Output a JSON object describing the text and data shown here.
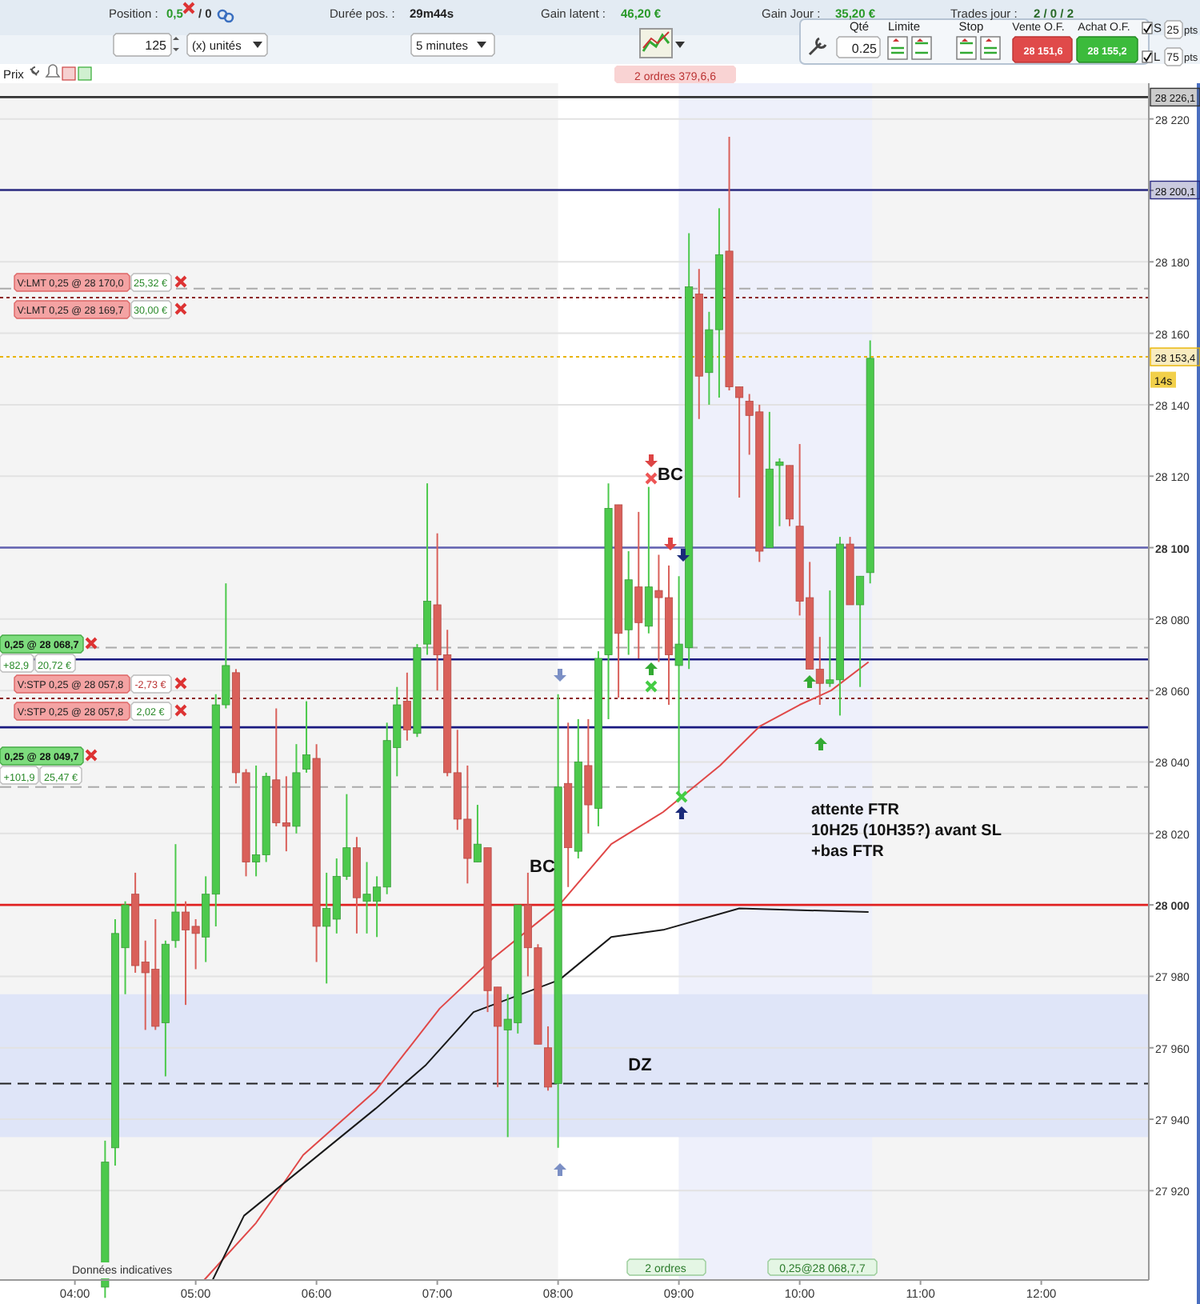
{
  "chart_data": {
    "type": "candlestick",
    "x": [
      4.25,
      4.3333,
      4.4167,
      4.5,
      4.5833,
      4.6667,
      4.75,
      4.8333,
      4.9167,
      5.0,
      5.0833,
      5.1667,
      5.25,
      5.3333,
      5.4167,
      5.5,
      5.5833,
      5.6667,
      5.75,
      5.8333,
      5.9167,
      6.0,
      6.0833,
      6.1667,
      6.25,
      6.3333,
      6.4167,
      6.5,
      6.5833,
      6.6667,
      6.75,
      6.8333,
      6.9167,
      7.0,
      7.0833,
      7.1667,
      7.25,
      7.3333,
      7.4167,
      7.5,
      7.5833,
      7.6667,
      7.75,
      7.8333,
      7.9167,
      8.0,
      8.0833,
      8.1667,
      8.25,
      8.3333,
      8.4167,
      8.5,
      8.5833,
      8.6667,
      8.75,
      8.8333,
      8.9167,
      9.0,
      9.0833,
      9.1667,
      9.25,
      9.3333,
      9.4167,
      9.5,
      9.5833,
      9.6667,
      9.75,
      9.8333,
      9.9167,
      10.0,
      10.0833,
      10.1667,
      10.25,
      10.3333,
      10.4167,
      10.5,
      10.5833
    ],
    "ohlc": [
      [
        27893,
        27934,
        27890,
        27928
      ],
      [
        27932,
        27996,
        27927,
        27992
      ],
      [
        27988,
        28001,
        27975,
        28000
      ],
      [
        28003,
        28009,
        27981,
        27983
      ],
      [
        27984,
        27990,
        27965,
        27981
      ],
      [
        27982,
        27996,
        27965,
        27966
      ],
      [
        27967,
        27990,
        27952,
        27989
      ],
      [
        27990,
        28017,
        27988,
        27998
      ],
      [
        27998,
        28001,
        27972,
        27993
      ],
      [
        27994,
        27996,
        27982,
        27992
      ],
      [
        27991,
        28008,
        27984,
        28003
      ],
      [
        28003,
        28059,
        27994,
        28056
      ],
      [
        28056,
        28090,
        28055,
        28067
      ],
      [
        28065,
        28066,
        28034,
        28037
      ],
      [
        28037,
        28038,
        28008,
        28012
      ],
      [
        28012,
        28039,
        28008,
        28014
      ],
      [
        28014,
        28037,
        28012,
        28036
      ],
      [
        28035,
        28055,
        28022,
        28023
      ],
      [
        28023,
        28036,
        28015,
        28022
      ],
      [
        28022,
        28045,
        28020,
        28037
      ],
      [
        28038,
        28057,
        28037,
        28042
      ],
      [
        28041,
        28045,
        27984,
        27994
      ],
      [
        27994,
        28009,
        27978,
        27999
      ],
      [
        27996,
        28013,
        27992,
        28008
      ],
      [
        28008,
        28031,
        28007,
        28016
      ],
      [
        28016,
        28019,
        27992,
        28002
      ],
      [
        28001,
        28012,
        27992,
        28003
      ],
      [
        28001,
        28008,
        27991,
        28005
      ],
      [
        28005,
        28051,
        28003,
        28046
      ],
      [
        28044,
        28061,
        28036,
        28056
      ],
      [
        28057,
        28065,
        28046,
        28049
      ],
      [
        28048,
        28073,
        28047,
        28072
      ],
      [
        28073,
        28118,
        28070,
        28085
      ],
      [
        28084,
        28104,
        28060,
        28070
      ],
      [
        28070,
        28077,
        28036,
        28037
      ],
      [
        28037,
        28049,
        28021,
        28024
      ],
      [
        28024,
        28039,
        28006,
        28013
      ],
      [
        28012,
        28028,
        28012,
        28017
      ],
      [
        28016,
        28016,
        27970,
        27976
      ],
      [
        27977,
        27977,
        27949,
        27966
      ],
      [
        27965,
        27975,
        27935,
        27968
      ],
      [
        27967,
        28000,
        27964,
        28000
      ],
      [
        28000,
        28009,
        27980,
        27988
      ],
      [
        27988,
        27989,
        27961,
        27961
      ],
      [
        27960,
        27966,
        27948,
        27949
      ],
      [
        27950,
        28059,
        27932,
        28033
      ],
      [
        28034,
        28051,
        28005,
        28016
      ],
      [
        28015,
        28052,
        28013,
        28040
      ],
      [
        28039,
        28052,
        28020,
        28028
      ],
      [
        28027,
        28071,
        28022,
        28069
      ],
      [
        28070,
        28118,
        28052,
        28111
      ],
      [
        28112,
        28112,
        28058,
        28076
      ],
      [
        28077,
        28099,
        28070,
        28091
      ],
      [
        28089,
        28110,
        28069,
        28079
      ],
      [
        28078,
        28117,
        28076,
        28089
      ],
      [
        28088,
        28098,
        28068,
        28086
      ],
      [
        28086,
        28095,
        28056,
        28070
      ],
      [
        28067,
        28092,
        28031,
        28073
      ],
      [
        28072,
        28188,
        28066,
        28173
      ],
      [
        28171,
        28178,
        28136,
        28148
      ],
      [
        28149,
        28166,
        28140,
        28161
      ],
      [
        28161,
        28195,
        28142,
        28182
      ],
      [
        28183,
        28215,
        28144,
        28145
      ],
      [
        28145,
        28145,
        28114,
        28142
      ],
      [
        28141,
        28143,
        28126,
        28137
      ],
      [
        28138,
        28140,
        28096,
        28099
      ],
      [
        28100,
        28138,
        28100,
        28122
      ],
      [
        28123,
        28125,
        28106,
        28124
      ],
      [
        28123,
        28123,
        28106,
        28108
      ],
      [
        28106,
        28129,
        28081,
        28085
      ],
      [
        28086,
        28096,
        28066,
        28066
      ],
      [
        28066,
        28075,
        28056,
        28062
      ],
      [
        28062,
        28088,
        28061,
        28063
      ],
      [
        28063,
        28103,
        28053,
        28101
      ],
      [
        28101,
        28103,
        28084,
        28084
      ],
      [
        28084,
        28092,
        28061,
        28092
      ],
      [
        28093,
        28158,
        28090,
        28153
      ]
    ],
    "series": [
      {
        "type": "line",
        "color": "#e04848",
        "x": [
          5.07,
          5.5,
          5.89,
          6.49,
          7.02,
          7.46,
          8.01,
          8.44,
          8.87,
          9.34,
          9.67,
          10.0,
          10.26,
          10.57
        ],
        "values": [
          27895,
          27911,
          27930,
          27948,
          27971,
          27985,
          28000,
          28017,
          28026,
          28039,
          28050,
          28056,
          28060,
          28068
        ]
      },
      {
        "type": "line",
        "color": "#1a1a1a",
        "x": [
          5.14,
          5.4,
          6.49,
          6.9,
          7.3,
          8.01,
          8.44,
          8.87,
          9.5,
          10.57
        ],
        "values": [
          27895,
          27913,
          27943,
          27955,
          27970,
          27979,
          27991,
          27993,
          27999,
          27998
        ]
      }
    ],
    "xlim": [
      3.38,
      12.89
    ],
    "ylim": [
      27895,
      28230
    ],
    "xticks": [
      {
        "value": 4,
        "label": "04:00"
      },
      {
        "value": 5,
        "label": "05:00"
      },
      {
        "value": 6,
        "label": "06:00"
      },
      {
        "value": 7,
        "label": "07:00"
      },
      {
        "value": 8,
        "label": "08:00"
      },
      {
        "value": 9,
        "label": "09:00"
      },
      {
        "value": 10,
        "label": "10:00"
      },
      {
        "value": 11,
        "label": "11:00"
      },
      {
        "value": 12,
        "label": "12:00"
      }
    ],
    "yticks": [
      {
        "value": 27920,
        "label": "27 920"
      },
      {
        "value": 27940,
        "label": "27 940"
      },
      {
        "value": 27960,
        "label": "27 960"
      },
      {
        "value": 27980,
        "label": "27 980"
      },
      {
        "value": 28000,
        "label": "28 000"
      },
      {
        "value": 28020,
        "label": "28 020"
      },
      {
        "value": 28040,
        "label": "28 040"
      },
      {
        "value": 28060,
        "label": "28 060"
      },
      {
        "value": 28080,
        "label": "28 080"
      },
      {
        "value": 28100,
        "label": "28 100"
      },
      {
        "value": 28120,
        "label": "28 120"
      },
      {
        "value": 28140,
        "label": "28 140"
      },
      {
        "value": 28160,
        "label": "28 160"
      },
      {
        "value": 28180,
        "label": "28 180"
      },
      {
        "value": 28200,
        "label": null
      },
      {
        "value": 28220,
        "label": "28 220"
      }
    ],
    "grid": "y",
    "bands": [
      {
        "axis": "x",
        "from": 8,
        "to": 9,
        "color": "#ffffff"
      },
      {
        "axis": "x",
        "from": 9,
        "to": 10.6,
        "color": "#eef0fb"
      },
      {
        "axis": "y",
        "from": 27935,
        "to": 27975,
        "color": "#dfe5f8"
      }
    ],
    "ref_lines": [
      {
        "axis": "y",
        "value": 28226.1,
        "label": "28 226,1",
        "color": "#333333",
        "line_style": "solid"
      },
      {
        "axis": "y",
        "value": 28200.1,
        "label": "28 200,1",
        "color": "#2a2a80",
        "line_style": "solid"
      },
      {
        "axis": "y",
        "value": 28153.4,
        "label": "28 153,4",
        "color": "#e8b400",
        "line_style": "dotted"
      },
      {
        "axis": "y",
        "value": 28100,
        "color": "#6060b0",
        "line_style": "solid"
      },
      {
        "axis": "y",
        "value": 28000,
        "color": "#e02020",
        "line_style": "solid"
      },
      {
        "axis": "y",
        "value": 28172.5,
        "color": "#aaaaaa",
        "line_style": "dashed"
      },
      {
        "axis": "y",
        "value": 28170,
        "color": "#8b1a1a",
        "line_style": "dotted"
      },
      {
        "axis": "y",
        "value": 28072,
        "color": "#aaaaaa",
        "line_style": "dashed"
      },
      {
        "axis": "y",
        "value": 28068.7,
        "color": "#1a1a80",
        "line_style": "solid"
      },
      {
        "axis": "y",
        "value": 28057.8,
        "color": "#8b1a1a",
        "line_style": "dotted"
      },
      {
        "axis": "y",
        "value": 28049.7,
        "color": "#1a1a80",
        "line_style": "solid"
      },
      {
        "axis": "y",
        "value": 28033,
        "color": "#aaaaaa",
        "line_style": "dashed"
      },
      {
        "axis": "y",
        "value": 27950,
        "color": "#222222",
        "line_style": "dashed"
      }
    ],
    "annotations": [
      "Position :",
      "0,5",
      "/ 0",
      "Durée pos. :",
      "29m44s",
      "Gain latent :",
      "46,20 €",
      "Gain Jour :",
      "35,20 €",
      "Trades jour :",
      "2 / 0 / 2",
      "125",
      "(x) unités",
      "5 minutes",
      "Qté",
      "0.25",
      "Limite",
      "Stop",
      "Vente O.F.",
      "28 151,6",
      "Achat O.F.",
      "28 155,2",
      "S",
      "25",
      "pts",
      "L",
      "75",
      "pts",
      "Prix",
      "2 ordres 379,6,6",
      "V:LMT 0,25 @ 28 170,0",
      "25,32 €",
      "V:LMT 0,25 @ 28 169,7",
      "30,00 €",
      "0,25 @ 28 068,7",
      "+82,9",
      "20,72 €",
      "V:STP 0,25 @ 28 057,8",
      "-2,73 €",
      "V:STP 0,25 @ 28 057,8",
      "2,02 €",
      "0,25 @ 28 049,7",
      "+101,9",
      "25,47 €",
      "2 ordres",
      "0,25@28 068,7,7",
      "Données indicatives",
      "BC",
      "BC",
      "DZ",
      "attente FTR\n10H25 (10H35?) avant SL\n+bas FTR",
      {
        "text": "14s",
        "y": 28147
      }
    ]
  }
}
